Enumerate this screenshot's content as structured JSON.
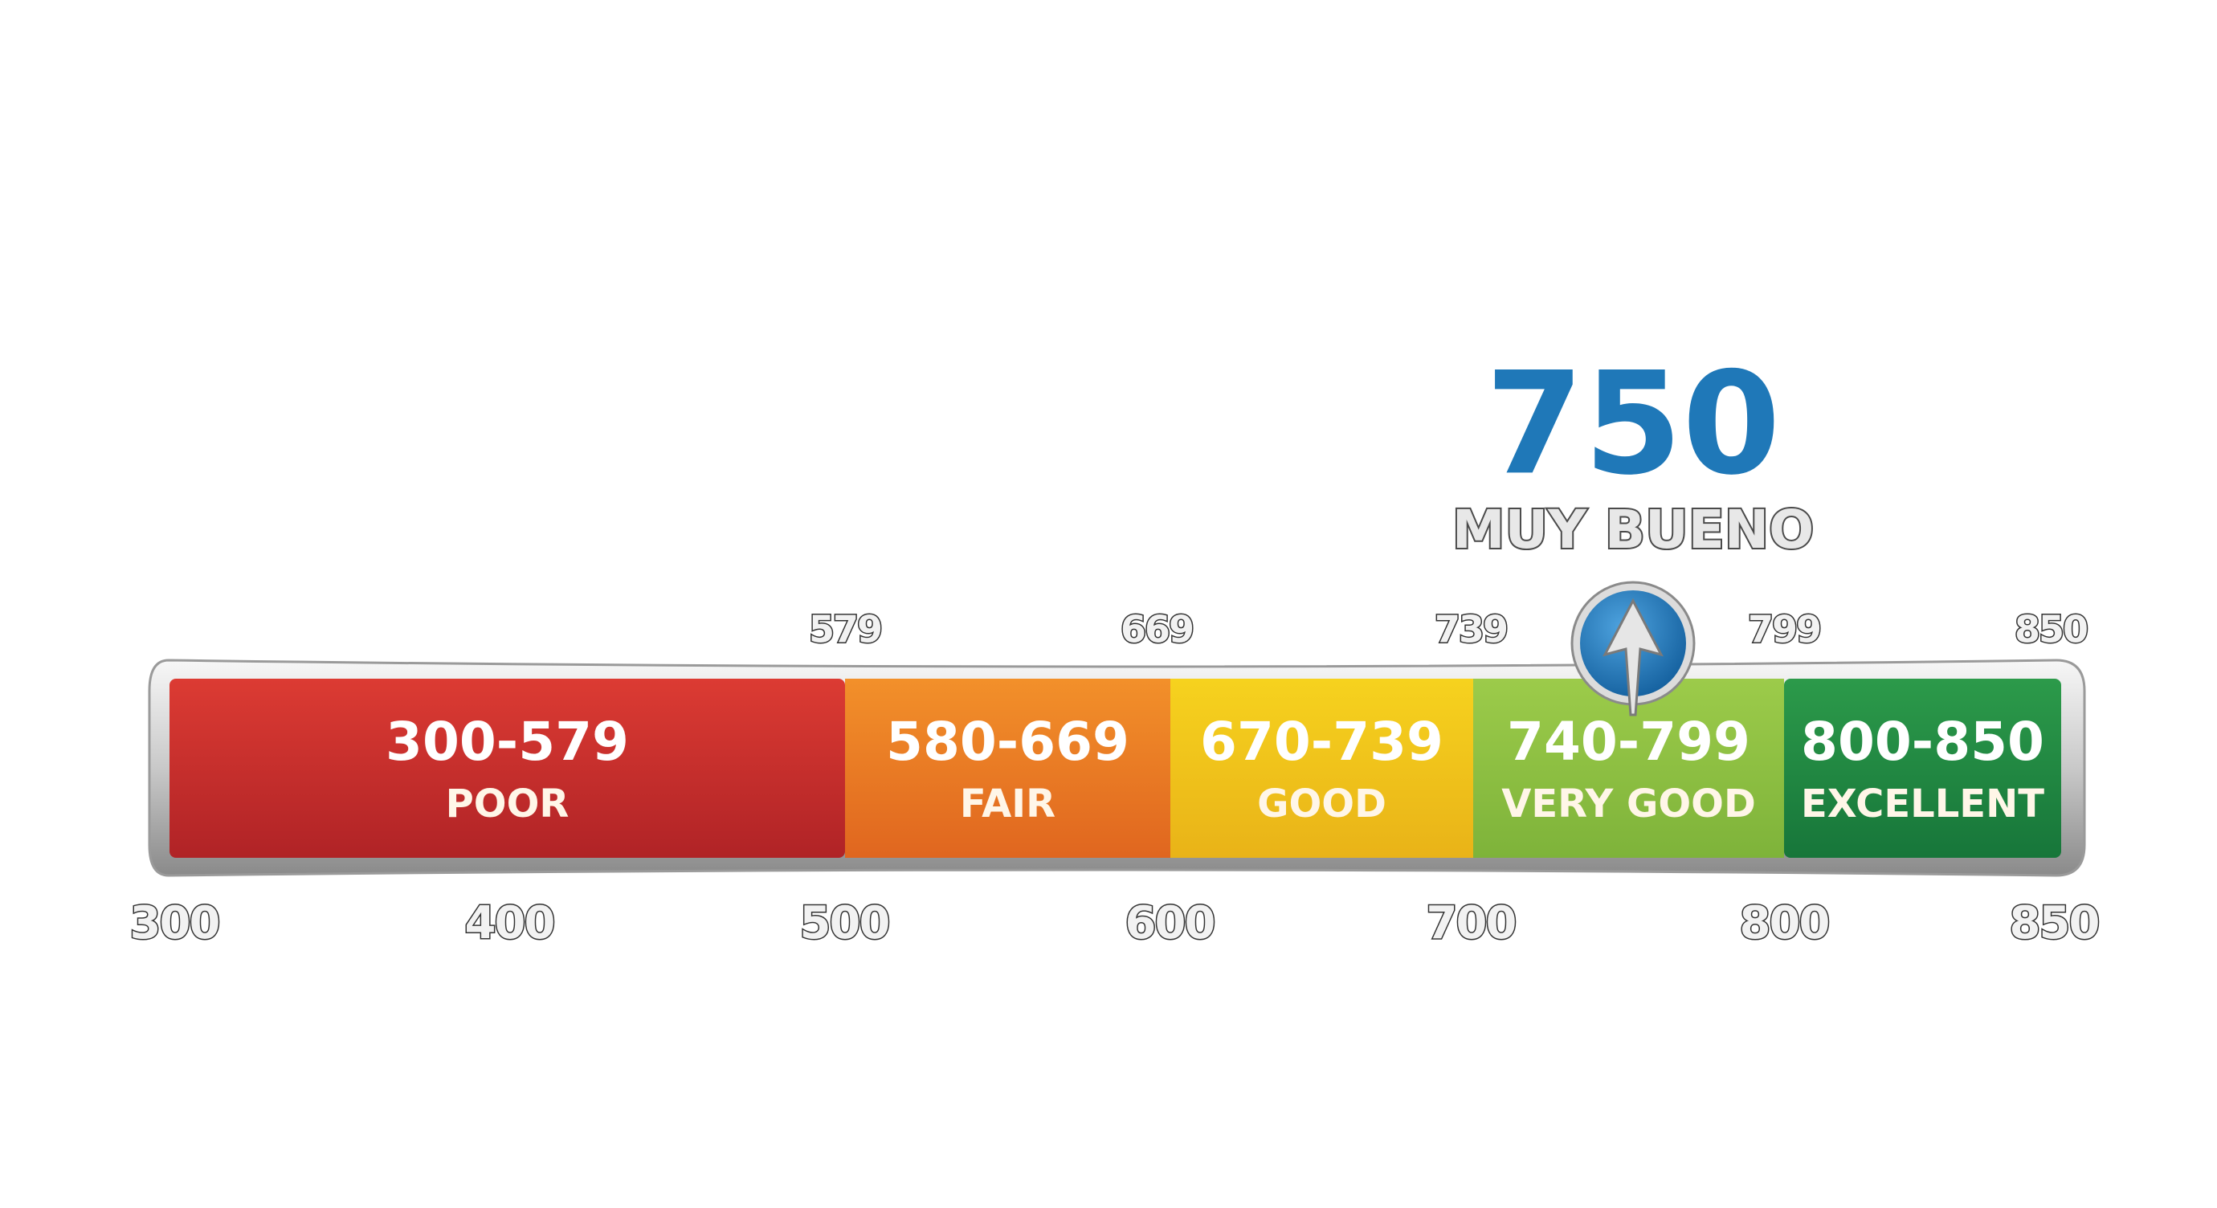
{
  "score": {
    "value": "750",
    "label": "MUY BUENO"
  },
  "segments": [
    {
      "range": "300-579",
      "name": "POOR"
    },
    {
      "range": "580-669",
      "name": "FAIR"
    },
    {
      "range": "670-739",
      "name": "GOOD"
    },
    {
      "range": "740-799",
      "name": "VERY GOOD"
    },
    {
      "range": "800-850",
      "name": "EXCELLENT"
    }
  ],
  "top_labels": [
    "579",
    "669",
    "739",
    "799",
    "850"
  ],
  "bottom_labels": [
    "300",
    "400",
    "500",
    "600",
    "700",
    "800",
    "850"
  ]
}
